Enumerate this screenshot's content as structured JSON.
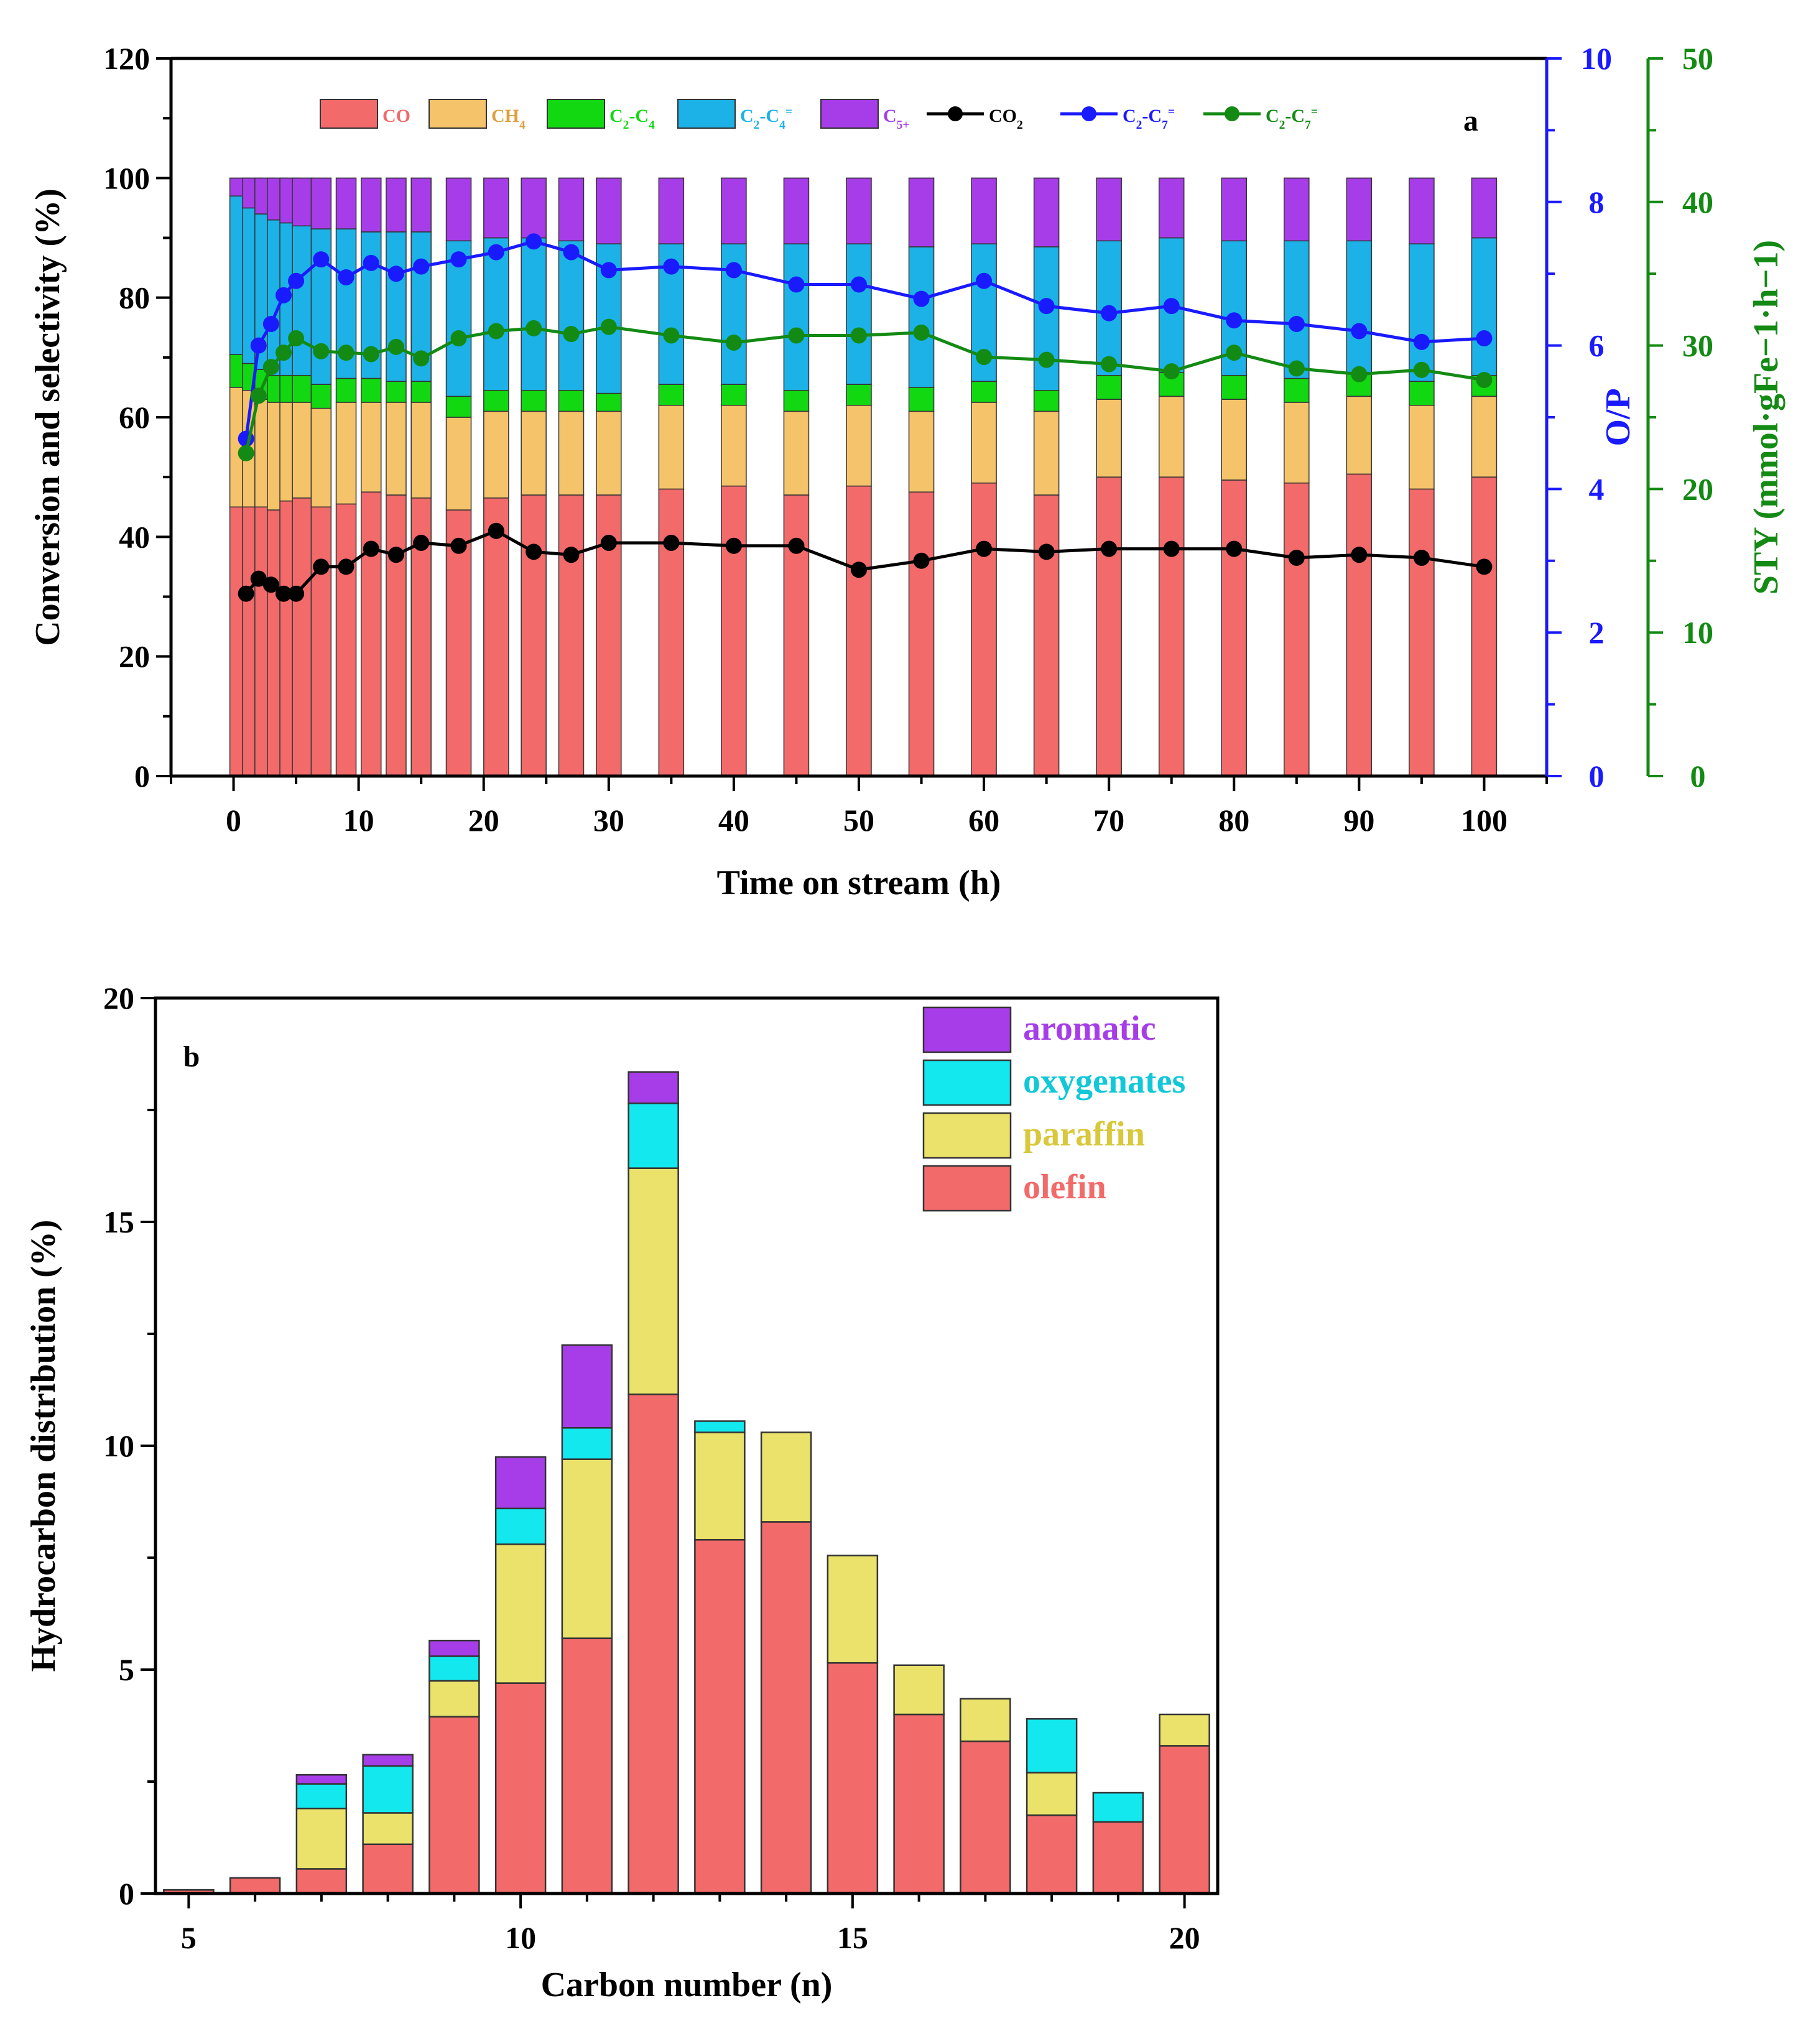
{
  "colors": {
    "CO": "#f26a6a",
    "CH4": "#f5c36a",
    "C2C4_par": "#12d812",
    "C2C4_ole": "#1cb2e8",
    "C5plus": "#a63de8",
    "CO2": "#000000",
    "OP": "#1a1aff",
    "STY": "#138a13",
    "olefin": "#f26a6a",
    "paraffin": "#eae26a",
    "oxygenates": "#12e8ee",
    "aromatic": "#a63de8"
  },
  "chart_data": [
    {
      "type": "bar",
      "panel": "a",
      "xlabel": "Time on stream (h)",
      "ylabel": "Conversion and selectivity (%)",
      "ylabel_right1": "O/P",
      "ylabel_right2": "STY (mmol·gFe−1·h−1)",
      "xlim": [
        -5,
        105
      ],
      "ylim": [
        0,
        120
      ],
      "ylim_right1": [
        0,
        10
      ],
      "ylim_right2": [
        0,
        50
      ],
      "xticks": [
        0,
        10,
        20,
        30,
        40,
        50,
        60,
        70,
        80,
        90,
        100
      ],
      "yticks": [
        0,
        20,
        40,
        60,
        80,
        100,
        120
      ],
      "yticks_right1": [
        0,
        2,
        4,
        6,
        8,
        10
      ],
      "yticks_right2": [
        0,
        10,
        20,
        30,
        40,
        50
      ],
      "legend": [
        "CO",
        "CH4",
        "C2-C4",
        "C2-C4=",
        "C5+",
        "CO2",
        "C2-C7=",
        "C2-C7="
      ],
      "x": [
        0.5,
        1.5,
        2.5,
        3.5,
        4.5,
        5.5,
        7,
        9,
        11,
        13,
        15,
        18,
        21,
        24,
        27,
        30,
        35,
        40,
        45,
        50,
        55,
        60,
        65,
        70,
        75,
        80,
        85,
        90,
        95,
        100
      ],
      "stack_cumulative": {
        "CO": [
          45,
          45,
          45,
          44.5,
          46,
          46.5,
          45,
          45.5,
          47.5,
          47,
          46.5,
          44.5,
          46.5,
          47,
          47,
          47,
          48,
          48.5,
          47,
          48.5,
          47.5,
          49,
          47,
          50,
          50,
          49.5,
          49,
          50.5,
          48,
          50
        ],
        "CH4": [
          65,
          64.5,
          63,
          62.5,
          62.5,
          62.5,
          61.5,
          62.5,
          62.5,
          62.5,
          62.5,
          60,
          61,
          61,
          61,
          61,
          62,
          62,
          61,
          62,
          61,
          62.5,
          61,
          63,
          63.5,
          63,
          62.5,
          63.5,
          62,
          63.5
        ],
        "C2-C4": [
          70.5,
          69,
          68,
          67,
          67,
          67,
          65.5,
          66.5,
          66.5,
          66,
          66,
          63.5,
          64.5,
          64.5,
          64.5,
          64,
          65.5,
          65.5,
          64.5,
          65.5,
          65,
          66,
          64.5,
          67,
          67.5,
          67,
          66.5,
          67.5,
          66,
          67
        ],
        "C2-C4=": [
          97,
          95,
          94,
          93,
          92.5,
          92,
          91.5,
          91.5,
          91,
          91,
          91,
          89.5,
          90,
          90,
          89.5,
          89,
          89,
          89,
          89,
          89,
          88.5,
          89,
          88.5,
          89.5,
          90,
          89.5,
          89.5,
          89.5,
          89,
          90
        ],
        "C5+": [
          100,
          100,
          100,
          100,
          100,
          100,
          100,
          100,
          100,
          100,
          100,
          100,
          100,
          100,
          100,
          100,
          100,
          100,
          100,
          100,
          100,
          100,
          100,
          100,
          100,
          100,
          100,
          100,
          100,
          100
        ]
      },
      "series": [
        {
          "name": "CO2",
          "axis": "left",
          "x": [
            1,
            2,
            3,
            4,
            5,
            7,
            9,
            11,
            13,
            15,
            18,
            21,
            24,
            27,
            30,
            35,
            40,
            45,
            50,
            55,
            60,
            65,
            70,
            75,
            80,
            85,
            90,
            95,
            100
          ],
          "values": [
            30.5,
            33,
            32,
            30.5,
            30.5,
            35,
            35,
            38,
            37,
            39,
            38.5,
            41,
            37.5,
            37,
            39,
            39,
            38.5,
            38.5,
            34.5,
            36,
            38,
            37.5,
            38,
            38,
            38,
            36.5,
            37,
            36.5,
            35
          ]
        },
        {
          "name": "O/P",
          "axis": "right1",
          "x": [
            1,
            2,
            3,
            4,
            5,
            7,
            9,
            11,
            13,
            15,
            18,
            21,
            24,
            27,
            30,
            35,
            40,
            45,
            50,
            55,
            60,
            65,
            70,
            75,
            80,
            85,
            90,
            95,
            100
          ],
          "values": [
            4.7,
            6.0,
            6.3,
            6.7,
            6.9,
            7.2,
            6.95,
            7.15,
            7.0,
            7.1,
            7.2,
            7.3,
            7.45,
            7.3,
            7.05,
            7.1,
            7.05,
            6.85,
            6.85,
            6.65,
            6.9,
            6.55,
            6.45,
            6.55,
            6.35,
            6.3,
            6.2,
            6.05,
            6.1
          ]
        },
        {
          "name": "STY",
          "axis": "right2",
          "x": [
            1,
            2,
            3,
            4,
            5,
            7,
            9,
            11,
            13,
            15,
            18,
            21,
            24,
            27,
            30,
            35,
            40,
            45,
            50,
            55,
            60,
            65,
            70,
            75,
            80,
            85,
            90,
            95,
            100
          ],
          "values": [
            22.5,
            26.5,
            28.5,
            29.5,
            30.5,
            29.6,
            29.5,
            29.4,
            29.9,
            29.1,
            30.5,
            31.0,
            31.2,
            30.8,
            31.3,
            30.7,
            30.2,
            30.7,
            30.7,
            30.9,
            29.2,
            29.0,
            28.7,
            28.2,
            29.5,
            28.4,
            28.0,
            28.3,
            27.6
          ]
        }
      ]
    },
    {
      "type": "bar",
      "panel": "b",
      "xlabel": "Carbon number (n)",
      "ylabel": "Hydrocarbon distribution (%)",
      "xlim": [
        4.5,
        20.5
      ],
      "ylim": [
        0,
        20
      ],
      "xticks": [
        5,
        10,
        15,
        20
      ],
      "yticks": [
        0,
        5,
        10,
        15,
        20
      ],
      "legend": [
        "aromatic",
        "oxygenates",
        "paraffin",
        "olefin"
      ],
      "categories": [
        5,
        6,
        7,
        8,
        9,
        10,
        11,
        12,
        13,
        14,
        15,
        16,
        17,
        18,
        19,
        20
      ],
      "stack_cumulative": {
        "olefin": [
          0.08,
          0.35,
          0.55,
          1.1,
          3.95,
          4.7,
          5.7,
          11.15,
          7.9,
          8.3,
          5.15,
          4.0,
          3.4,
          1.75,
          1.6,
          3.3
        ],
        "paraffin": [
          0.08,
          0.35,
          1.9,
          1.8,
          4.75,
          7.8,
          9.7,
          16.2,
          10.3,
          10.3,
          7.55,
          5.1,
          4.35,
          2.7,
          1.6,
          4.0
        ],
        "oxygenates": [
          0.08,
          0.35,
          2.45,
          2.85,
          5.3,
          8.6,
          10.4,
          17.65,
          10.55,
          10.3,
          7.55,
          5.1,
          4.35,
          3.9,
          2.25,
          4.0
        ],
        "aromatic": [
          0.08,
          0.35,
          2.65,
          3.1,
          5.65,
          9.75,
          12.25,
          18.35,
          10.55,
          10.3,
          7.55,
          5.1,
          4.35,
          3.9,
          2.25,
          4.0
        ]
      }
    }
  ]
}
